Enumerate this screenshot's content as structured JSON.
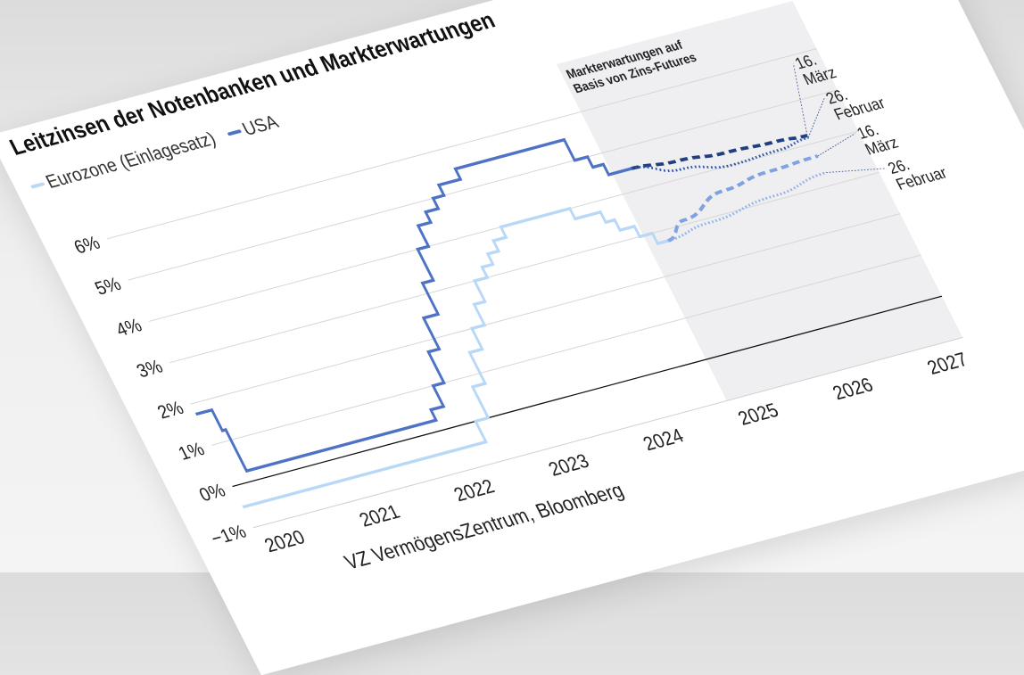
{
  "chart_data": {
    "type": "line",
    "title": "Leitzinsen der Notenbanken und Markterwartungen",
    "ylim": [
      -1,
      6
    ],
    "yticks": [
      "−1%",
      "0%",
      "1%",
      "2%",
      "3%",
      "4%",
      "5%",
      "6%"
    ],
    "ytick_values": [
      -1,
      0,
      1,
      2,
      3,
      4,
      5,
      6
    ],
    "xticks": [
      "2020",
      "2021",
      "2022",
      "2023",
      "2024",
      "2025",
      "2026",
      "2027"
    ],
    "xlim": [
      "2020-01-01",
      "2027-06-30"
    ],
    "grid": true,
    "legend_position": "top-left",
    "shaded_region": {
      "from": "2025-01-01",
      "to": "2027-06-30",
      "label": "Markterwartungen auf Basis von Zins-Futures",
      "color": "#efeff1"
    },
    "series": [
      {
        "name": "Eurozone (Einlagesatz)",
        "color": "#b9d8f7",
        "step": true,
        "points": [
          [
            "2020-01-01",
            -0.5
          ],
          [
            "2022-07-27",
            0
          ],
          [
            "2022-09-14",
            0.75
          ],
          [
            "2022-11-02",
            1.5
          ],
          [
            "2022-12-21",
            2.0
          ],
          [
            "2023-02-08",
            2.5
          ],
          [
            "2023-03-22",
            3.0
          ],
          [
            "2023-05-10",
            3.25
          ],
          [
            "2023-06-21",
            3.5
          ],
          [
            "2023-08-02",
            3.75
          ],
          [
            "2023-09-20",
            4.0
          ],
          [
            "2024-06-12",
            3.75
          ],
          [
            "2024-09-18",
            3.5
          ],
          [
            "2024-10-23",
            3.25
          ],
          [
            "2024-12-18",
            3.0
          ],
          [
            "2025-02-05",
            2.75
          ],
          [
            "2025-03-17",
            2.75
          ]
        ]
      },
      {
        "name": "USA",
        "color": "#4d72c6",
        "step": true,
        "points": [
          [
            "2020-01-01",
            1.75
          ],
          [
            "2020-03-03",
            1.25
          ],
          [
            "2020-03-16",
            0.25
          ],
          [
            "2022-03-17",
            0.5
          ],
          [
            "2022-05-05",
            1.0
          ],
          [
            "2022-06-16",
            1.75
          ],
          [
            "2022-07-28",
            2.5
          ],
          [
            "2022-09-22",
            3.25
          ],
          [
            "2022-11-03",
            4.0
          ],
          [
            "2022-12-15",
            4.5
          ],
          [
            "2023-02-02",
            4.75
          ],
          [
            "2023-03-23",
            5.0
          ],
          [
            "2023-05-04",
            5.25
          ],
          [
            "2023-07-27",
            5.5
          ],
          [
            "2024-09-19",
            5.0
          ],
          [
            "2024-11-08",
            4.75
          ],
          [
            "2024-12-19",
            4.5
          ],
          [
            "2025-03-17",
            4.5
          ]
        ]
      }
    ],
    "projections": [
      {
        "label": "16. März",
        "of": "USA",
        "style": "dashed",
        "color": "#1f3f80",
        "points": [
          [
            "2025-03-17",
            4.5
          ],
          [
            "2025-09-01",
            4.4
          ],
          [
            "2026-03-01",
            4.3
          ],
          [
            "2026-09-01",
            4.25
          ],
          [
            "2026-12-31",
            4.2
          ]
        ]
      },
      {
        "label": "26. Februar",
        "of": "USA",
        "style": "dotted",
        "color": "#2f55a8",
        "points": [
          [
            "2025-03-17",
            4.5
          ],
          [
            "2025-09-01",
            4.2
          ],
          [
            "2026-03-01",
            4.0
          ],
          [
            "2026-09-01",
            4.05
          ],
          [
            "2026-12-31",
            4.15
          ]
        ]
      },
      {
        "label": "16. März",
        "of": "Eurozone (Einlagesatz)",
        "style": "dashed",
        "color": "#7fa2e3",
        "points": [
          [
            "2025-03-17",
            2.75
          ],
          [
            "2025-06-15",
            3.1
          ],
          [
            "2025-12-15",
            3.5
          ],
          [
            "2026-06-15",
            3.65
          ],
          [
            "2026-12-31",
            3.7
          ]
        ]
      },
      {
        "label": "26. Februar",
        "of": "Eurozone (Einlagesatz)",
        "style": "dotted",
        "color": "#8fb0ea",
        "points": [
          [
            "2025-03-17",
            2.75
          ],
          [
            "2025-09-01",
            2.9
          ],
          [
            "2026-06-01",
            3.1
          ],
          [
            "2026-12-31",
            3.3
          ]
        ]
      }
    ]
  },
  "legend": [
    {
      "label": "Eurozone (Einlagesatz)",
      "color": "#b9d8f7"
    },
    {
      "label": "USA",
      "color": "#4d72c6"
    }
  ],
  "source": "VZ VermögensZentrum, Bloomberg"
}
